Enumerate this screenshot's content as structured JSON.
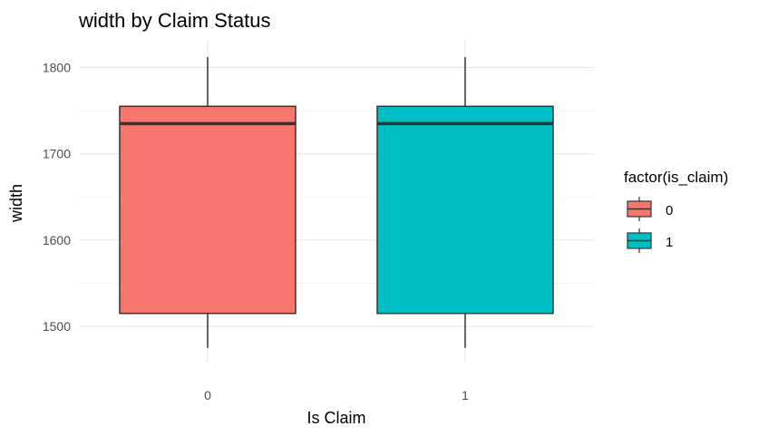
{
  "chart_data": {
    "type": "box",
    "title": "width by Claim Status",
    "xlabel": "Is Claim",
    "ylabel": "width",
    "categories": [
      "0",
      "1"
    ],
    "y_ticks": [
      "1500",
      "1600",
      "1700",
      "1800"
    ],
    "ylim": [
      1458,
      1832
    ],
    "grid": true,
    "legend_position": "right",
    "legend_title": "factor(is_claim)",
    "boxes": [
      {
        "category": "0",
        "whisker_low": 1475,
        "q1": 1515,
        "median": 1735,
        "q3": 1755,
        "whisker_high": 1812,
        "color": "#F8766D"
      },
      {
        "category": "1",
        "whisker_low": 1475,
        "q1": 1515,
        "median": 1735,
        "q3": 1755,
        "whisker_high": 1812,
        "color": "#00BFC4"
      }
    ],
    "legend": [
      {
        "label": "0",
        "color": "#F8766D"
      },
      {
        "label": "1",
        "color": "#00BFC4"
      }
    ]
  }
}
